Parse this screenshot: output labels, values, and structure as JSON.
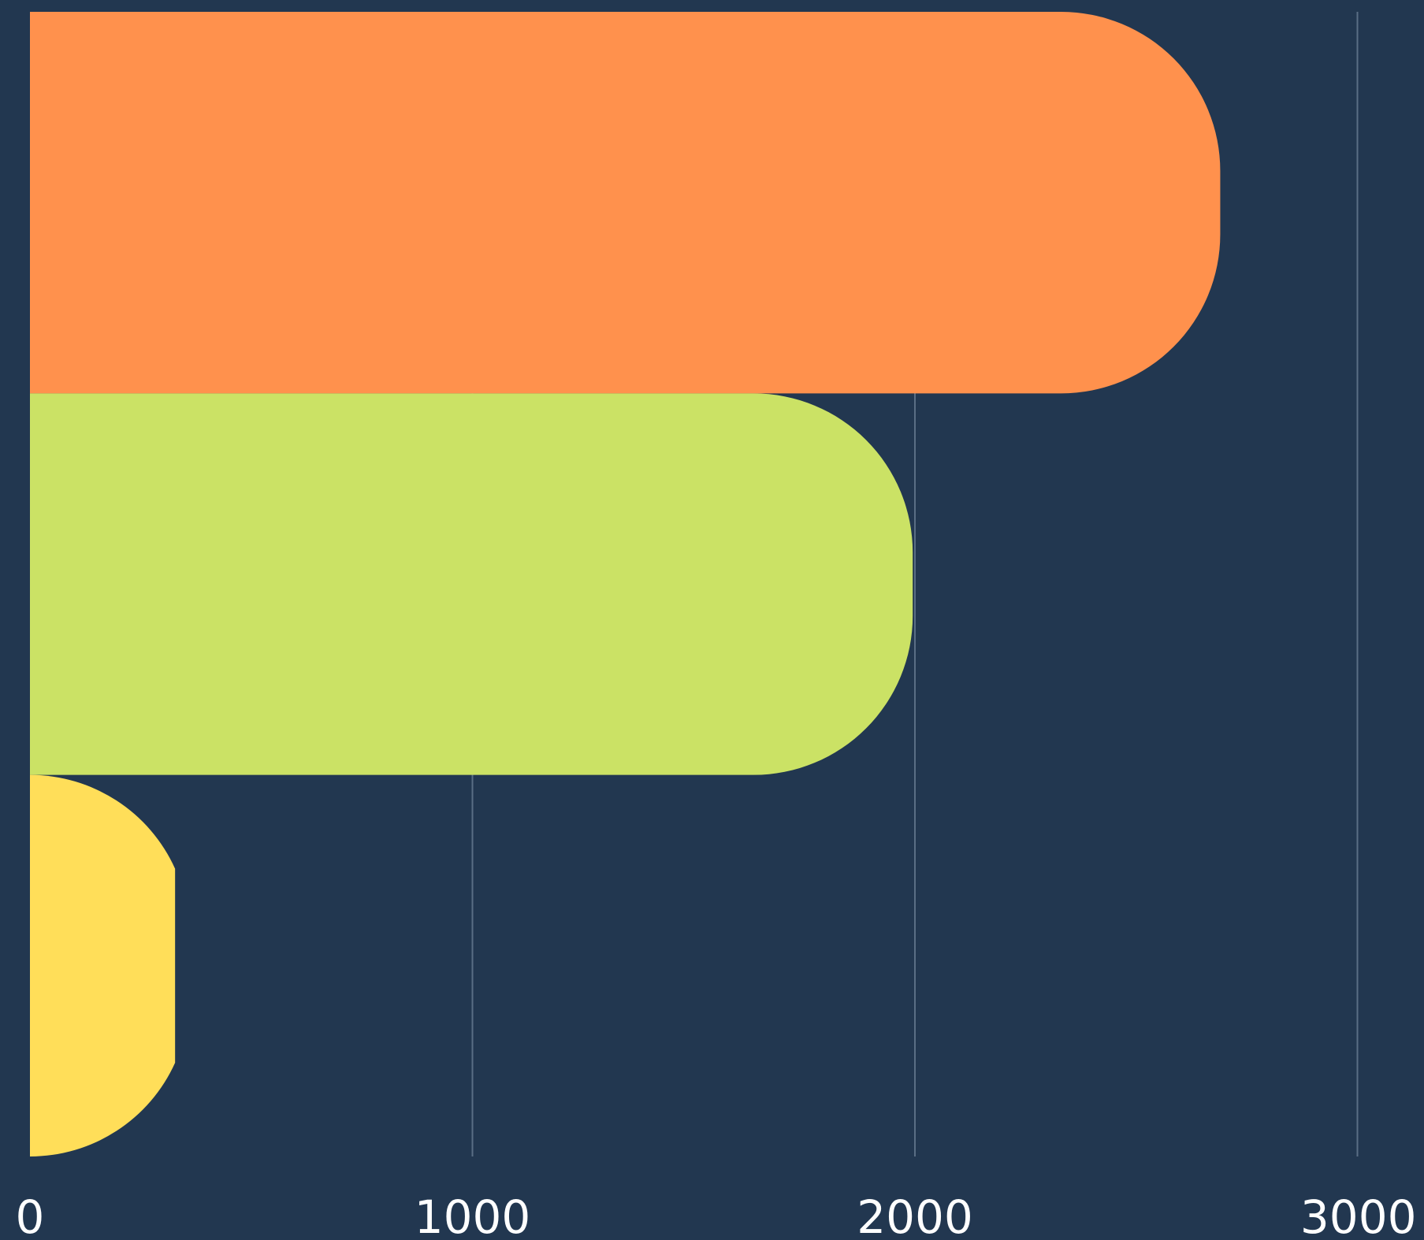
{
  "chart_data": {
    "type": "bar",
    "orientation": "horizontal",
    "categories": [
      "",
      "",
      ""
    ],
    "values": [
      2690,
      1995,
      328
    ],
    "bar_colors": [
      "#FF914D",
      "#CBE265",
      "#FFDE59"
    ],
    "xlim": [
      0,
      3000
    ],
    "x_ticks": [
      0,
      1000,
      2000,
      3000
    ],
    "x_tick_labels": [
      "0",
      "1000",
      "2000",
      "3000"
    ],
    "grid": true,
    "grid_color": "#5A6E85",
    "background": "#223750",
    "title": "",
    "xlabel": "",
    "ylabel": ""
  }
}
